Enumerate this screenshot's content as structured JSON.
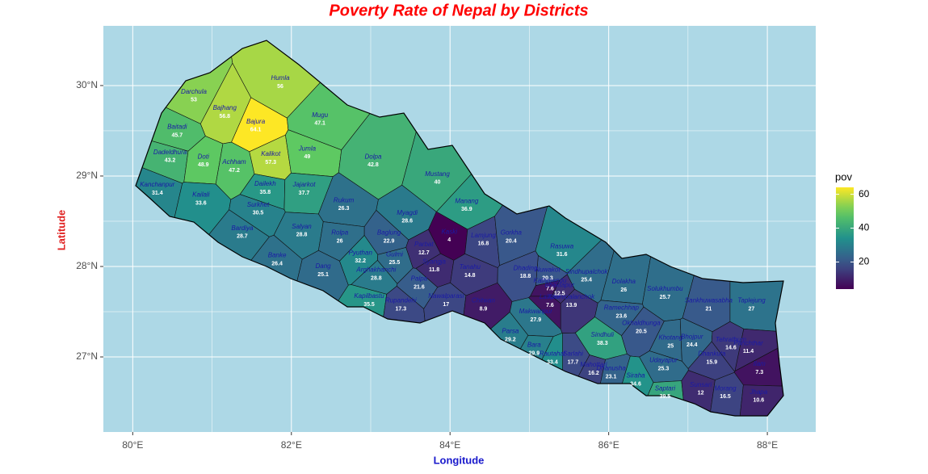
{
  "chart_data": {
    "type": "map",
    "title": "Poverty Rate of Nepal by Districts",
    "xlabel": "Longitude",
    "ylabel": "Latitude",
    "xlim": [
      79.63,
      88.61
    ],
    "ylim": [
      26.17,
      30.66
    ],
    "xticks": [
      {
        "value": 80,
        "label": "80°E"
      },
      {
        "value": 82,
        "label": "82°E"
      },
      {
        "value": 84,
        "label": "84°E"
      },
      {
        "value": 86,
        "label": "86°E"
      },
      {
        "value": 88,
        "label": "88°E"
      }
    ],
    "yticks": [
      {
        "value": 27,
        "label": "27°N"
      },
      {
        "value": 28,
        "label": "28°N"
      },
      {
        "value": 29,
        "label": "29°N"
      },
      {
        "value": 30,
        "label": "30°N"
      }
    ],
    "grid": true,
    "colormap": "viridis",
    "legend_title": "pov",
    "legend_ticks": [
      20,
      40,
      60
    ],
    "districts": [
      {
        "name": "Humla",
        "lon": 81.86,
        "lat": 30.0,
        "value": 56
      },
      {
        "name": "Darchula",
        "lon": 80.77,
        "lat": 29.85,
        "value": 53
      },
      {
        "name": "Bajhang",
        "lon": 81.16,
        "lat": 29.67,
        "value": 56.8
      },
      {
        "name": "Bajura",
        "lon": 81.55,
        "lat": 29.52,
        "value": 64.1
      },
      {
        "name": "Mugu",
        "lon": 82.36,
        "lat": 29.59,
        "value": 47.1
      },
      {
        "name": "Baitadi",
        "lon": 80.56,
        "lat": 29.46,
        "value": 45.7
      },
      {
        "name": "Dadeldhura",
        "lon": 80.47,
        "lat": 29.18,
        "value": 43.2
      },
      {
        "name": "Doti",
        "lon": 80.89,
        "lat": 29.13,
        "value": 48.9
      },
      {
        "name": "Achham",
        "lon": 81.28,
        "lat": 29.07,
        "value": 47.2
      },
      {
        "name": "Kalikot",
        "lon": 81.74,
        "lat": 29.16,
        "value": 57.3
      },
      {
        "name": "Jumla",
        "lon": 82.2,
        "lat": 29.22,
        "value": 49
      },
      {
        "name": "Dolpa",
        "lon": 83.03,
        "lat": 29.13,
        "value": 42.8
      },
      {
        "name": "Mustang",
        "lon": 83.84,
        "lat": 28.94,
        "value": 40
      },
      {
        "name": "Kanchanpur",
        "lon": 80.31,
        "lat": 28.82,
        "value": 31.4
      },
      {
        "name": "Kailali",
        "lon": 80.86,
        "lat": 28.71,
        "value": 33.6
      },
      {
        "name": "Dailekh",
        "lon": 81.67,
        "lat": 28.83,
        "value": 35.8
      },
      {
        "name": "Jajarkot",
        "lon": 82.16,
        "lat": 28.82,
        "value": 37.7
      },
      {
        "name": "Surkhet",
        "lon": 81.58,
        "lat": 28.6,
        "value": 30.5
      },
      {
        "name": "Rukum",
        "lon": 82.66,
        "lat": 28.65,
        "value": 26.3
      },
      {
        "name": "Manang",
        "lon": 84.21,
        "lat": 28.64,
        "value": 36.9
      },
      {
        "name": "Myagdi",
        "lon": 83.46,
        "lat": 28.51,
        "value": 28.6
      },
      {
        "name": "Kaski",
        "lon": 83.99,
        "lat": 28.3,
        "value": 4
      },
      {
        "name": "Bardiya",
        "lon": 81.38,
        "lat": 28.34,
        "value": 28.7
      },
      {
        "name": "Salyan",
        "lon": 82.13,
        "lat": 28.36,
        "value": 28.8
      },
      {
        "name": "Rolpa",
        "lon": 82.61,
        "lat": 28.29,
        "value": 26
      },
      {
        "name": "Baglung",
        "lon": 83.23,
        "lat": 28.29,
        "value": 22.9
      },
      {
        "name": "Parbat",
        "lon": 83.67,
        "lat": 28.16,
        "value": 12.7
      },
      {
        "name": "Lamjung",
        "lon": 84.42,
        "lat": 28.26,
        "value": 16.8
      },
      {
        "name": "Gorkha",
        "lon": 84.77,
        "lat": 28.29,
        "value": 20.4
      },
      {
        "name": "Rasuwa",
        "lon": 85.41,
        "lat": 28.14,
        "value": 31.6
      },
      {
        "name": "Banke",
        "lon": 81.82,
        "lat": 28.04,
        "value": 26.4
      },
      {
        "name": "Dang",
        "lon": 82.4,
        "lat": 27.92,
        "value": 25.1
      },
      {
        "name": "Pyuthan",
        "lon": 82.87,
        "lat": 28.07,
        "value": 32.2
      },
      {
        "name": "Gulmi",
        "lon": 83.3,
        "lat": 28.05,
        "value": 25.5
      },
      {
        "name": "Arghakhanchi",
        "lon": 83.07,
        "lat": 27.88,
        "value": 28.8
      },
      {
        "name": "Syangja",
        "lon": 83.8,
        "lat": 27.97,
        "value": 11.8
      },
      {
        "name": "Tanahu",
        "lon": 84.25,
        "lat": 27.91,
        "value": 14.8
      },
      {
        "name": "Palpa",
        "lon": 83.61,
        "lat": 27.78,
        "value": 21.6
      },
      {
        "name": "Nuwakot",
        "lon": 85.23,
        "lat": 27.88,
        "value": 20.3
      },
      {
        "name": "Dhading",
        "lon": 84.95,
        "lat": 27.9,
        "value": 18.8
      },
      {
        "name": "Sindhupalchok",
        "lon": 85.72,
        "lat": 27.86,
        "value": 25.4
      },
      {
        "name": "Dolakha",
        "lon": 86.19,
        "lat": 27.75,
        "value": 26
      },
      {
        "name": "Kapilbastu",
        "lon": 82.98,
        "lat": 27.59,
        "value": 35.5
      },
      {
        "name": "Rupandehi",
        "lon": 83.38,
        "lat": 27.54,
        "value": 17.3
      },
      {
        "name": "Nawalparasi",
        "lon": 83.95,
        "lat": 27.59,
        "value": 17
      },
      {
        "name": "Chitwan",
        "lon": 84.42,
        "lat": 27.54,
        "value": 8.9
      },
      {
        "name": "Kathmandu",
        "lon": 85.26,
        "lat": 27.76,
        "value": 7.6
      },
      {
        "name": "Bhaktapur",
        "lon": 85.38,
        "lat": 27.71,
        "value": 12.5
      },
      {
        "name": "Lalitpur",
        "lon": 85.26,
        "lat": 27.58,
        "value": 7.6
      },
      {
        "name": "Kavrepalanchok",
        "lon": 85.53,
        "lat": 27.58,
        "value": 13.9
      },
      {
        "name": "Makwanpur",
        "lon": 85.08,
        "lat": 27.42,
        "value": 27.9
      },
      {
        "name": "Ramechhap",
        "lon": 86.16,
        "lat": 27.46,
        "value": 23.6
      },
      {
        "name": "Solukhumbu",
        "lon": 86.71,
        "lat": 27.67,
        "value": 25.7
      },
      {
        "name": "Sankhuwasabha",
        "lon": 87.26,
        "lat": 27.54,
        "value": 21
      },
      {
        "name": "Taplejung",
        "lon": 87.8,
        "lat": 27.54,
        "value": 27
      },
      {
        "name": "Parsa",
        "lon": 84.76,
        "lat": 27.2,
        "value": 29.2
      },
      {
        "name": "Bara",
        "lon": 85.06,
        "lat": 27.05,
        "value": 29.9
      },
      {
        "name": "Rautahat",
        "lon": 85.29,
        "lat": 26.95,
        "value": 33.4
      },
      {
        "name": "Sarlahi",
        "lon": 85.55,
        "lat": 26.95,
        "value": 17.7
      },
      {
        "name": "Sindhuli",
        "lon": 85.92,
        "lat": 27.16,
        "value": 38.3
      },
      {
        "name": "Okhaldhunga",
        "lon": 86.41,
        "lat": 27.29,
        "value": 20.5
      },
      {
        "name": "Khotang",
        "lon": 86.78,
        "lat": 27.13,
        "value": 25
      },
      {
        "name": "Bhojpur",
        "lon": 87.05,
        "lat": 27.14,
        "value": 24.4
      },
      {
        "name": "Tehrathum",
        "lon": 87.54,
        "lat": 27.11,
        "value": 14.6
      },
      {
        "name": "Panchthar",
        "lon": 87.76,
        "lat": 27.07,
        "value": 11.4
      },
      {
        "name": "Ilam",
        "lon": 87.9,
        "lat": 26.84,
        "value": 7.3
      },
      {
        "name": "Dhankuta",
        "lon": 87.3,
        "lat": 26.95,
        "value": 15.9
      },
      {
        "name": "Mahottari",
        "lon": 85.81,
        "lat": 26.83,
        "value": 16.2
      },
      {
        "name": "Dhanusha",
        "lon": 86.03,
        "lat": 26.79,
        "value": 23.1
      },
      {
        "name": "Udayapur",
        "lon": 86.69,
        "lat": 26.88,
        "value": 25.3
      },
      {
        "name": "Siraha",
        "lon": 86.34,
        "lat": 26.71,
        "value": 34.6
      },
      {
        "name": "Saptari",
        "lon": 86.71,
        "lat": 26.57,
        "value": 39.5
      },
      {
        "name": "Sunsari",
        "lon": 87.16,
        "lat": 26.61,
        "value": 12
      },
      {
        "name": "Morang",
        "lon": 87.47,
        "lat": 26.57,
        "value": 16.5
      },
      {
        "name": "Jhapa",
        "lon": 87.89,
        "lat": 26.53,
        "value": 10.6
      }
    ]
  }
}
